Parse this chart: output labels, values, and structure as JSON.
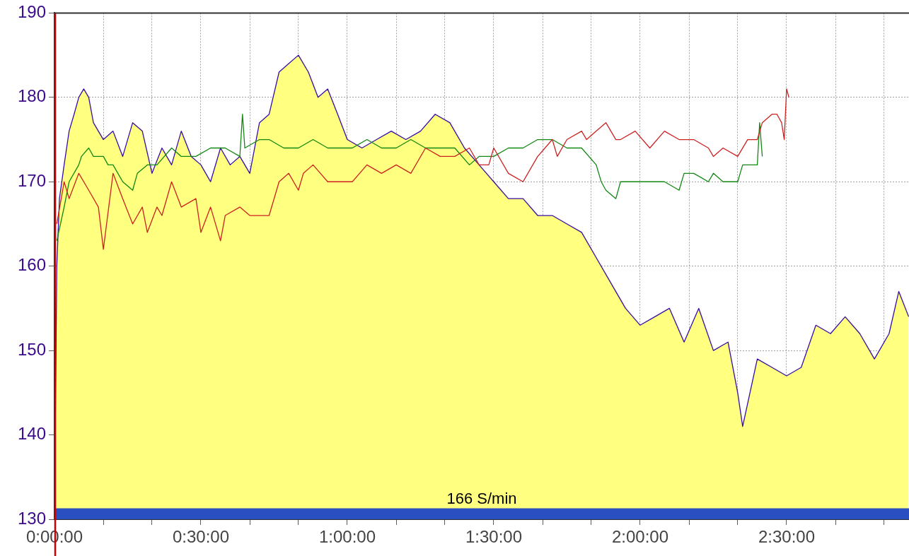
{
  "chart_data": {
    "type": "line",
    "xlim": [
      0,
      2.918
    ],
    "ylim": [
      130,
      190
    ],
    "xticks": [
      {
        "value": 0,
        "label": "0:00:00"
      },
      {
        "value": 0.167,
        "label": null
      },
      {
        "value": 0.333,
        "label": null
      },
      {
        "value": 0.5,
        "label": "0:30:00"
      },
      {
        "value": 0.667,
        "label": null
      },
      {
        "value": 0.833,
        "label": null
      },
      {
        "value": 1,
        "label": "1:00:00"
      },
      {
        "value": 1.167,
        "label": null
      },
      {
        "value": 1.333,
        "label": null
      },
      {
        "value": 1.5,
        "label": "1:30:00"
      },
      {
        "value": 1.667,
        "label": null
      },
      {
        "value": 1.833,
        "label": null
      },
      {
        "value": 2,
        "label": "2:00:00"
      },
      {
        "value": 2.167,
        "label": null
      },
      {
        "value": 2.333,
        "label": null
      },
      {
        "value": 2.5,
        "label": "2:30:00"
      },
      {
        "value": 2.667,
        "label": null
      },
      {
        "value": 2.833,
        "label": null
      }
    ],
    "yticks": [
      130,
      140,
      150,
      160,
      170,
      180,
      190
    ],
    "grid": true,
    "legend": false,
    "marker": "none",
    "line_style": "solid",
    "series": [
      {
        "type": "area",
        "color": "#ffff80",
        "x": [
          0,
          0.008,
          0.017,
          0.033,
          0.05,
          0.067,
          0.083,
          0.1,
          0.117,
          0.133,
          0.15,
          0.167,
          0.2,
          0.233,
          0.267,
          0.3,
          0.333,
          0.367,
          0.4,
          0.433,
          0.467,
          0.5,
          0.533,
          0.567,
          0.6,
          0.633,
          0.667,
          0.7,
          0.733,
          0.767,
          0.8,
          0.833,
          0.867,
          0.9,
          0.933,
          0.967,
          1,
          1.05,
          1.1,
          1.15,
          1.2,
          1.25,
          1.3,
          1.35,
          1.4,
          1.45,
          1.5,
          1.55,
          1.6,
          1.65,
          1.7,
          1.75,
          1.8,
          1.85,
          1.9,
          1.95,
          2,
          2.05,
          2.1,
          2.15,
          2.2,
          2.25,
          2.3,
          2.333,
          2.35,
          2.4,
          2.45,
          2.5,
          2.55,
          2.6,
          2.65,
          2.7,
          2.75,
          2.8,
          2.85,
          2.883,
          2.917
        ],
        "values": [
          130,
          160,
          168,
          172,
          176,
          178,
          180,
          181,
          180,
          177,
          176,
          175,
          176,
          173,
          177,
          176,
          171,
          174,
          172,
          176,
          173,
          172,
          170,
          174,
          172,
          173,
          171,
          177,
          178,
          183,
          184,
          185,
          183,
          180,
          181,
          178,
          175,
          174,
          175,
          176,
          175,
          176,
          178,
          177,
          174,
          172,
          170,
          168,
          168,
          166,
          166,
          165,
          164,
          161,
          158,
          155,
          153,
          154,
          155,
          151,
          155,
          150,
          151,
          145,
          141,
          149,
          148,
          147,
          148,
          153,
          152,
          154,
          152,
          149,
          152,
          157,
          154
        ]
      },
      {
        "type": "line",
        "color": "#cc2222",
        "x": [
          0.008,
          0.033,
          0.05,
          0.083,
          0.117,
          0.15,
          0.167,
          0.2,
          0.233,
          0.267,
          0.3,
          0.317,
          0.35,
          0.367,
          0.4,
          0.433,
          0.483,
          0.5,
          0.533,
          0.567,
          0.583,
          0.633,
          0.667,
          0.683,
          0.733,
          0.767,
          0.8,
          0.833,
          0.85,
          0.883,
          0.933,
          0.967,
          1.017,
          1.067,
          1.117,
          1.167,
          1.217,
          1.267,
          1.317,
          1.367,
          1.417,
          1.45,
          1.483,
          1.5,
          1.55,
          1.6,
          1.65,
          1.7,
          1.717,
          1.75,
          1.8,
          1.817,
          1.85,
          1.883,
          1.917,
          1.933,
          1.983,
          2.033,
          2.083,
          2.133,
          2.183,
          2.233,
          2.25,
          2.283,
          2.333,
          2.367,
          2.4,
          2.417,
          2.45,
          2.467,
          2.483,
          2.492,
          2.5,
          2.508
        ],
        "values": [
          165,
          170,
          168,
          171,
          169,
          167,
          162,
          171,
          168,
          165,
          167,
          164,
          167,
          166,
          170,
          167,
          168,
          164,
          167,
          163,
          166,
          167,
          166,
          166,
          166,
          170,
          171,
          169,
          171,
          172,
          170,
          170,
          170,
          172,
          171,
          172,
          171,
          174,
          173,
          173,
          174,
          172,
          172,
          174,
          171,
          170,
          173,
          175,
          173,
          175,
          176,
          175,
          176,
          177,
          175,
          175,
          176,
          174,
          176,
          175,
          175,
          174,
          173,
          174,
          173,
          175,
          175,
          177,
          178,
          178,
          177,
          175,
          181,
          180
        ]
      },
      {
        "type": "line",
        "color": "#118811",
        "x": [
          0.008,
          0.033,
          0.05,
          0.083,
          0.092,
          0.117,
          0.133,
          0.167,
          0.183,
          0.2,
          0.233,
          0.267,
          0.283,
          0.317,
          0.35,
          0.4,
          0.433,
          0.467,
          0.483,
          0.533,
          0.583,
          0.633,
          0.642,
          0.65,
          0.7,
          0.733,
          0.783,
          0.833,
          0.883,
          0.933,
          0.967,
          1.017,
          1.067,
          1.117,
          1.167,
          1.217,
          1.267,
          1.317,
          1.367,
          1.417,
          1.45,
          1.5,
          1.55,
          1.6,
          1.65,
          1.7,
          1.75,
          1.8,
          1.85,
          1.867,
          1.883,
          1.917,
          1.933,
          1.983,
          2.033,
          2.083,
          2.133,
          2.15,
          2.183,
          2.233,
          2.25,
          2.283,
          2.3,
          2.333,
          2.35,
          2.367,
          2.4,
          2.408,
          2.417
        ],
        "values": [
          163,
          167,
          170,
          172,
          173,
          174,
          173,
          173,
          172,
          172,
          170,
          169,
          171,
          172,
          172,
          174,
          173,
          173,
          173,
          174,
          174,
          173,
          178,
          174,
          175,
          175,
          174,
          174,
          175,
          174,
          174,
          174,
          175,
          174,
          174,
          175,
          174,
          174,
          174,
          172,
          173,
          173,
          174,
          174,
          175,
          175,
          174,
          174,
          172,
          170,
          169,
          168,
          170,
          170,
          170,
          170,
          169,
          171,
          171,
          170,
          171,
          170,
          170,
          170,
          172,
          172,
          172,
          177,
          173
        ]
      }
    ],
    "bands": [
      {
        "axis": "y",
        "from": 130,
        "to": 131.3,
        "label": "166 S/min",
        "color": "#2a4fc0"
      }
    ],
    "ref_lines": [
      {
        "axis": "x",
        "value": 0,
        "color": "#cc0000"
      }
    ]
  }
}
